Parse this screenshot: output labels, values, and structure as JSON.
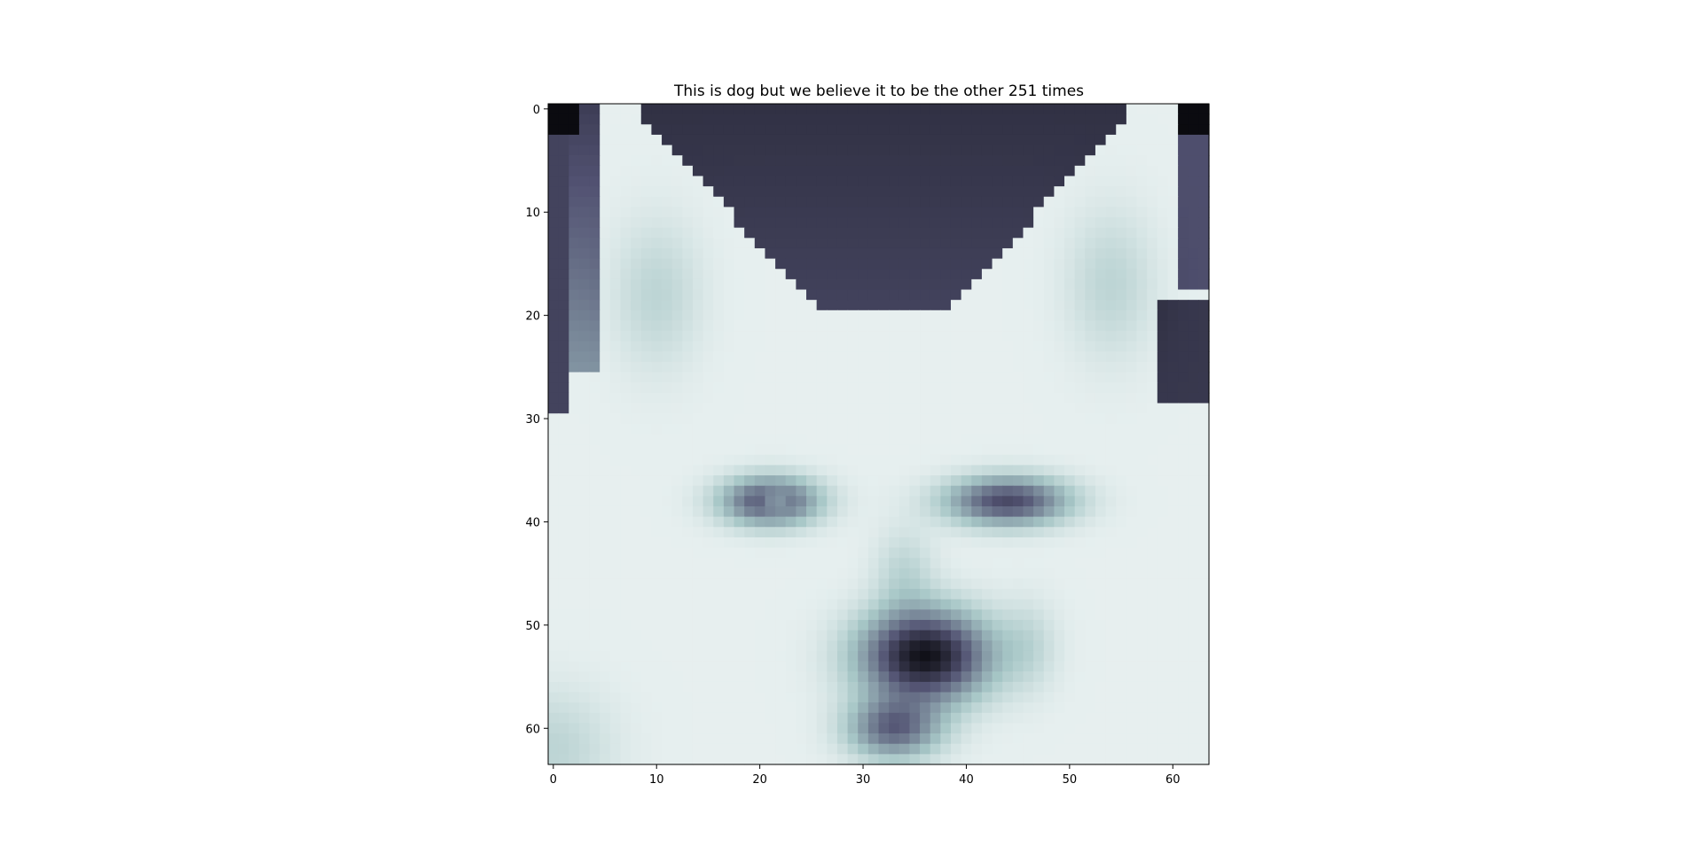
{
  "chart_data": {
    "type": "heatmap",
    "title": "This is dog but we believe it to be the other 251 times",
    "xlabel": "",
    "ylabel": "",
    "colormap": "bone",
    "grid": false,
    "xlim": [
      -0.5,
      63.5
    ],
    "ylim": [
      63.5,
      -0.5
    ],
    "x_ticks": [
      0,
      10,
      20,
      30,
      40,
      50,
      60
    ],
    "y_ticks": [
      0,
      10,
      20,
      30,
      40,
      50,
      60
    ],
    "image_size": [
      64,
      64
    ],
    "description_values": "grayscale 64x64 image; pixel intensities mapped with bone colormap"
  }
}
